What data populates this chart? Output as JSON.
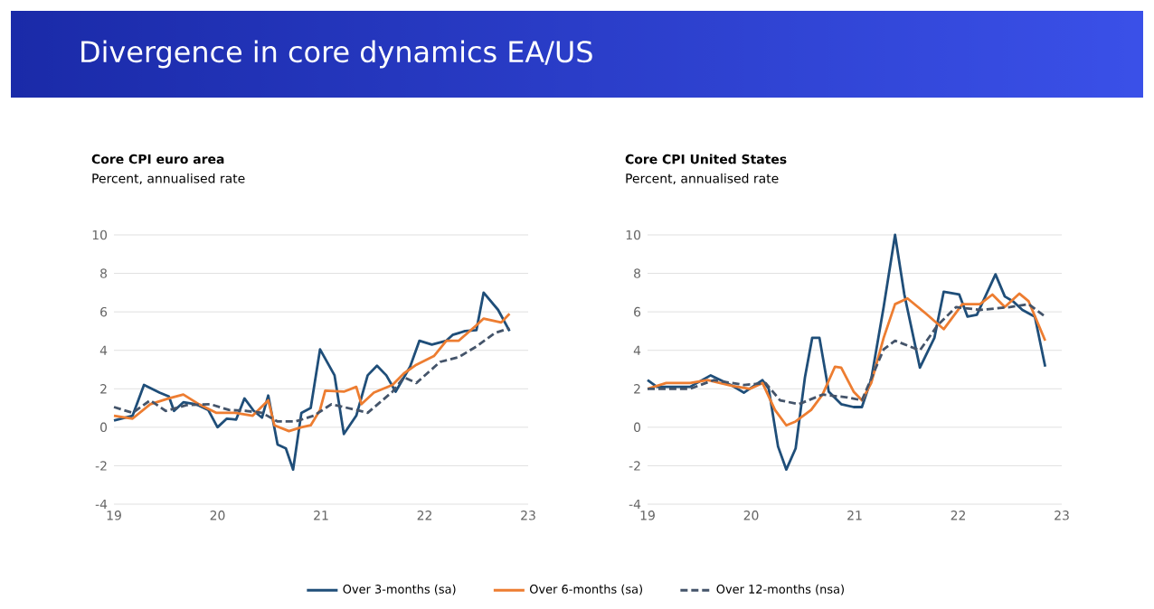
{
  "chart_data": [
    {
      "type": "line",
      "title": "Core CPI euro area",
      "subtitle": "Percent, annualised rate",
      "annotations": [
        "Divergence in core dynamics EA/US"
      ],
      "xlim": [
        19,
        23
      ],
      "xticks": [
        19,
        20,
        21,
        22,
        23
      ],
      "ylim": [
        -4,
        10
      ],
      "yticks": [
        -4,
        -2,
        0,
        2,
        4,
        6,
        8,
        10
      ],
      "grid": "y",
      "legend": "bottom",
      "series": [
        {
          "name": "Over 3-months (sa)",
          "color": "#1f4e79",
          "line_style": "solid",
          "x": [
            19.0,
            19.18,
            19.29,
            19.44,
            19.53,
            19.58,
            19.67,
            19.79,
            19.91,
            20.0,
            20.09,
            20.18,
            20.26,
            20.35,
            20.43,
            20.49,
            20.58,
            20.66,
            20.73,
            20.81,
            20.9,
            20.99,
            21.13,
            21.22,
            21.34,
            21.45,
            21.54,
            21.63,
            21.72,
            21.86,
            21.95,
            22.07,
            22.21,
            22.27,
            22.39,
            22.5,
            22.57,
            22.71,
            22.82
          ],
          "values": [
            0.35,
            0.6,
            2.2,
            1.8,
            1.6,
            0.85,
            1.3,
            1.2,
            0.9,
            0,
            0.45,
            0.4,
            1.5,
            0.85,
            0.5,
            1.65,
            -0.9,
            -1.1,
            -2.2,
            0.75,
            1.0,
            4.05,
            2.7,
            -0.35,
            0.6,
            2.7,
            3.2,
            2.7,
            1.85,
            3.15,
            4.5,
            4.3,
            4.5,
            4.8,
            5.0,
            5.05,
            7.0,
            6.1,
            5.0
          ]
        },
        {
          "name": "Over 6-months (sa)",
          "color": "#ed7d31",
          "line_style": "solid",
          "x": [
            19.0,
            19.18,
            19.35,
            19.53,
            19.67,
            19.82,
            19.99,
            20.17,
            20.34,
            20.49,
            20.55,
            20.69,
            20.81,
            20.9,
            20.99,
            21.04,
            21.22,
            21.34,
            21.39,
            21.51,
            21.69,
            21.8,
            21.92,
            22.09,
            22.21,
            22.33,
            22.5,
            22.57,
            22.74,
            22.82
          ],
          "values": [
            0.6,
            0.45,
            1.2,
            1.5,
            1.7,
            1.2,
            0.75,
            0.75,
            0.6,
            1.4,
            0.1,
            -0.2,
            0,
            0.1,
            0.9,
            1.9,
            1.85,
            2.1,
            1.2,
            1.8,
            2.2,
            2.8,
            3.25,
            3.7,
            4.5,
            4.5,
            5.3,
            5.65,
            5.45,
            5.9
          ]
        },
        {
          "name": "Over 12-months (nsa)",
          "color": "#44546a",
          "line_style": "dashed",
          "x": [
            19.0,
            19.18,
            19.35,
            19.5,
            19.7,
            19.93,
            20.11,
            20.28,
            20.43,
            20.58,
            20.75,
            20.93,
            21.1,
            21.34,
            21.45,
            21.69,
            21.8,
            21.92,
            22.15,
            22.33,
            22.5,
            22.68,
            22.82
          ],
          "values": [
            1.05,
            0.75,
            1.4,
            0.85,
            1.15,
            1.2,
            0.9,
            0.85,
            0.75,
            0.3,
            0.3,
            0.6,
            1.2,
            0.9,
            0.75,
            1.85,
            2.6,
            2.3,
            3.4,
            3.65,
            4.2,
            4.9,
            5.15
          ]
        }
      ]
    },
    {
      "type": "line",
      "title": "Core CPI United States",
      "subtitle": "Percent, annualised rate",
      "xlim": [
        19,
        23
      ],
      "xticks": [
        19,
        20,
        21,
        22,
        23
      ],
      "ylim": [
        -4,
        10
      ],
      "yticks": [
        -4,
        -2,
        0,
        2,
        4,
        6,
        8,
        10
      ],
      "grid": "y",
      "series": [
        {
          "color": "#1f4e79",
          "line_style": "solid",
          "x": [
            19.0,
            19.09,
            19.41,
            19.61,
            19.82,
            19.93,
            20.11,
            20.17,
            20.26,
            20.34,
            20.43,
            20.52,
            20.59,
            20.66,
            20.75,
            20.87,
            20.99,
            21.07,
            21.16,
            21.28,
            21.39,
            21.48,
            21.63,
            21.77,
            21.86,
            22.01,
            22.09,
            22.18,
            22.36,
            22.45,
            22.53,
            22.62,
            22.74,
            22.84
          ],
          "values": [
            2.45,
            2.1,
            2.1,
            2.7,
            2.15,
            1.8,
            2.45,
            2.0,
            -1.0,
            -2.2,
            -1.1,
            2.6,
            4.65,
            4.65,
            1.85,
            1.2,
            1.05,
            1.05,
            2.5,
            6.25,
            10,
            6.9,
            3.1,
            4.65,
            7.05,
            6.9,
            5.75,
            5.85,
            7.95,
            6.8,
            6.55,
            6.1,
            5.75,
            3.15
          ]
        },
        {
          "color": "#ed7d31",
          "line_style": "solid",
          "x": [
            19.0,
            19.18,
            19.41,
            19.58,
            19.82,
            19.99,
            20.11,
            20.23,
            20.34,
            20.43,
            20.58,
            20.69,
            20.81,
            20.87,
            20.99,
            21.07,
            21.16,
            21.28,
            21.39,
            21.51,
            21.69,
            21.86,
            22.04,
            22.21,
            22.33,
            22.45,
            22.59,
            22.68,
            22.84
          ],
          "values": [
            2.0,
            2.3,
            2.3,
            2.45,
            2.15,
            2.0,
            2.3,
            0.9,
            0.1,
            0.3,
            0.9,
            1.7,
            3.15,
            3.1,
            1.85,
            1.4,
            2.3,
            4.65,
            6.4,
            6.7,
            5.9,
            5.1,
            6.4,
            6.4,
            6.9,
            6.25,
            6.95,
            6.55,
            4.5
          ]
        },
        {
          "color": "#44546a",
          "line_style": "dashed",
          "x": [
            19.0,
            19.41,
            19.64,
            19.93,
            20.14,
            20.28,
            20.46,
            20.69,
            20.93,
            21.07,
            21.28,
            21.39,
            21.63,
            21.8,
            21.98,
            22.21,
            22.5,
            22.68,
            22.84
          ],
          "values": [
            2.0,
            2.0,
            2.45,
            2.2,
            2.3,
            1.4,
            1.2,
            1.7,
            1.55,
            1.4,
            4.05,
            4.5,
            4.0,
            5.3,
            6.25,
            6.1,
            6.25,
            6.4,
            5.75
          ]
        }
      ]
    }
  ]
}
